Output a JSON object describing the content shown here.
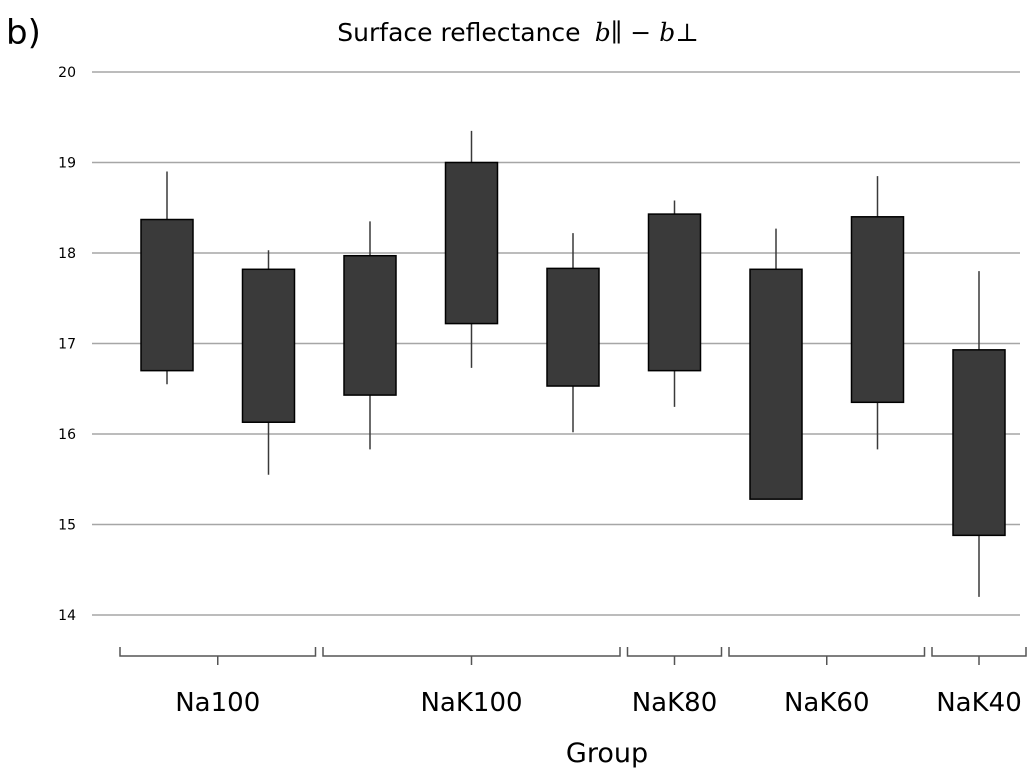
{
  "panel_label": "b)",
  "chart_data": {
    "type": "box",
    "title": "Surface reflectance",
    "title_math": "b∥ − b⊥",
    "xlabel": "Group",
    "ylabel": "",
    "ylim": [
      14,
      20
    ],
    "yticks": [
      14,
      15,
      16,
      17,
      18,
      19,
      20
    ],
    "grid": true,
    "legend": "none",
    "box_color": "#3a3a3a",
    "boxes": [
      {
        "group": "Na100",
        "low": 16.55,
        "q1": 16.7,
        "q3": 18.37,
        "high": 18.9
      },
      {
        "group": "Na100",
        "low": 15.55,
        "q1": 16.13,
        "q3": 17.82,
        "high": 18.03
      },
      {
        "group": "NaK100",
        "low": 15.83,
        "q1": 16.43,
        "q3": 17.97,
        "high": 18.35
      },
      {
        "group": "NaK100",
        "low": 16.73,
        "q1": 17.22,
        "q3": 19.0,
        "high": 19.35
      },
      {
        "group": "NaK100",
        "low": 16.02,
        "q1": 16.53,
        "q3": 17.83,
        "high": 18.22
      },
      {
        "group": "NaK80",
        "low": 16.3,
        "q1": 16.7,
        "q3": 18.43,
        "high": 18.58
      },
      {
        "group": "NaK60",
        "low": 15.28,
        "q1": 15.28,
        "q3": 17.82,
        "high": 18.27
      },
      {
        "group": "NaK60",
        "low": 15.83,
        "q1": 16.35,
        "q3": 18.4,
        "high": 18.85
      },
      {
        "group": "NaK40",
        "low": 14.2,
        "q1": 14.88,
        "q3": 16.93,
        "high": 17.8
      }
    ],
    "groups": [
      "Na100",
      "NaK100",
      "NaK80",
      "NaK60",
      "NaK40"
    ]
  }
}
